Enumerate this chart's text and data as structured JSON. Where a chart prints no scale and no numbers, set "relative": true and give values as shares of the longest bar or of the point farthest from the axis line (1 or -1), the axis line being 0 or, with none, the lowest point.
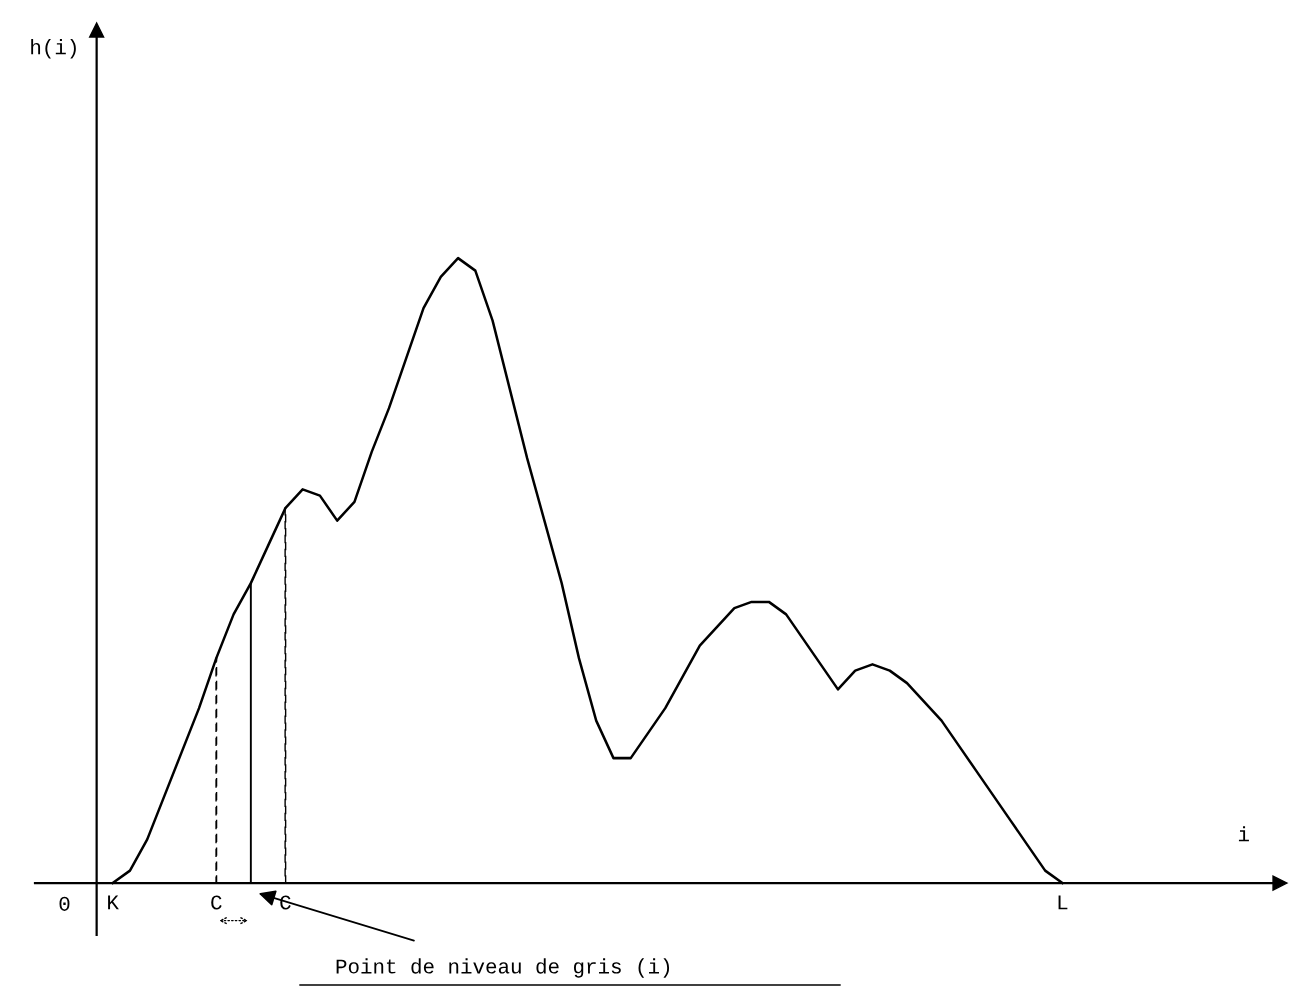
{
  "chart_data": {
    "type": "line",
    "relative": true,
    "tick_labels": "x",
    "categories": [
      "K",
      null,
      null,
      null,
      null,
      null,
      "C",
      null,
      null,
      null,
      "C",
      null,
      null,
      null,
      null,
      null,
      null,
      null,
      null,
      null,
      null,
      null,
      null,
      null,
      null,
      null,
      null,
      null,
      null,
      null,
      null,
      null,
      null,
      null,
      null,
      null,
      null,
      null,
      null,
      null,
      null,
      null,
      null,
      null,
      null,
      null,
      null,
      null,
      null,
      null,
      null,
      null,
      null,
      null,
      null,
      "L"
    ],
    "series": [
      {
        "color": "#000000",
        "line_style": "solid",
        "values": [
          0,
          0.02,
          0.07,
          0.14,
          0.21,
          0.28,
          0.36,
          0.43,
          0.48,
          0.54,
          0.6,
          0.63,
          0.62,
          0.58,
          0.61,
          0.69,
          0.76,
          0.84,
          0.92,
          0.97,
          1,
          0.98,
          0.9,
          0.79,
          0.68,
          0.58,
          0.48,
          0.36,
          0.26,
          0.2,
          0.2,
          0.24,
          0.28,
          0.33,
          0.38,
          0.41,
          0.44,
          0.45,
          0.45,
          0.43,
          0.39,
          0.35,
          0.31,
          0.34,
          0.35,
          0.34,
          0.32,
          0.29,
          0.26,
          0.22,
          0.18,
          0.14,
          0.1,
          0.06,
          0.02,
          0
        ]
      },
      {
        "type": "bar",
        "color": "#000000",
        "line_style": "dashed",
        "values": [
          null,
          null,
          null,
          null,
          null,
          null,
          0.36,
          null,
          null,
          null,
          0.6,
          null,
          null,
          null,
          null,
          null,
          null,
          null,
          null,
          null,
          null,
          null,
          null,
          null,
          null,
          null,
          null,
          null,
          null,
          null,
          null,
          null,
          null,
          null,
          null,
          null,
          null,
          null,
          null,
          null,
          null,
          null,
          null,
          null,
          null,
          null,
          null,
          null,
          null,
          null,
          null,
          null,
          null,
          null,
          null,
          null
        ]
      },
      {
        "type": "bar",
        "color": "#000000",
        "line_style": "solid",
        "values": [
          null,
          null,
          null,
          null,
          null,
          null,
          null,
          null,
          0.48,
          null,
          null,
          null,
          null,
          null,
          null,
          null,
          null,
          null,
          null,
          null,
          null,
          null,
          null,
          null,
          null,
          null,
          null,
          null,
          null,
          null,
          null,
          null,
          null,
          null,
          null,
          null,
          null,
          null,
          null,
          null,
          null,
          null,
          null,
          null,
          null,
          null,
          null,
          null,
          null,
          null,
          null,
          null,
          null,
          null,
          null,
          null
        ]
      }
    ],
    "annotations": [
      "0",
      "Point de niveau de gris (i)",
      "h(i)",
      "i"
    ]
  }
}
